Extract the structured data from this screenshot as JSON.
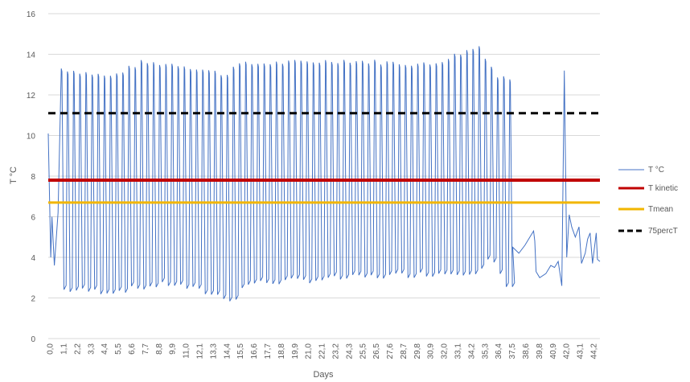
{
  "chart_data": {
    "type": "line",
    "title": "",
    "xlabel": "Days",
    "ylabel": "T °C",
    "xlim": [
      0.0,
      44.9
    ],
    "ylim": [
      0,
      16
    ],
    "yticks": [
      0,
      2,
      4,
      6,
      8,
      10,
      12,
      14,
      16
    ],
    "xtick_labels": [
      "0,0",
      "1,1",
      "2,2",
      "3,3",
      "4,4",
      "5,5",
      "6,6",
      "7,7",
      "8,8",
      "9,9",
      "11,0",
      "12,1",
      "13,3",
      "14,4",
      "15,5",
      "16,6",
      "17,7",
      "18,8",
      "19,9",
      "21,0",
      "22,1",
      "23,2",
      "24,3",
      "25,5",
      "26,5",
      "27,6",
      "28,7",
      "29,8",
      "30,9",
      "32,0",
      "33,1",
      "34,2",
      "35,3",
      "36,4",
      "37,5",
      "38,6",
      "39,8",
      "40,9",
      "42,0",
      "43,1",
      "44,2"
    ],
    "grid": true,
    "legend_position": "right",
    "series": [
      {
        "name": "T °C",
        "style": "line",
        "color": "#4472C4",
        "description": "daily temperature cycles",
        "start": {
          "day": 0.0,
          "value": 10.1
        },
        "cycle_period_days": 0.5,
        "noise_region": [
          [
            0.2,
            4.0
          ],
          [
            0.3,
            6.0
          ],
          [
            0.5,
            3.6
          ],
          [
            0.8,
            6.2
          ]
        ],
        "peak_profile": [
          [
            1.0,
            13.3
          ],
          [
            5.0,
            12.9
          ],
          [
            7.5,
            13.6
          ],
          [
            10.5,
            13.5
          ],
          [
            14.5,
            13.0
          ],
          [
            15.0,
            13.5
          ],
          [
            24.0,
            13.7
          ],
          [
            31.0,
            13.5
          ],
          [
            35.0,
            14.4
          ],
          [
            36.5,
            12.9
          ],
          [
            37.8,
            12.8
          ]
        ],
        "trough_profile": [
          [
            1.0,
            2.4
          ],
          [
            5.0,
            2.3
          ],
          [
            10.0,
            2.7
          ],
          [
            14.5,
            2.0
          ],
          [
            15.2,
            1.9
          ],
          [
            16.0,
            2.7
          ],
          [
            25.0,
            3.0
          ],
          [
            35.0,
            3.3
          ],
          [
            36.0,
            4.0
          ],
          [
            37.2,
            2.5
          ],
          [
            37.8,
            2.6
          ]
        ],
        "tail_points": [
          [
            37.8,
            4.5
          ],
          [
            38.3,
            4.2
          ],
          [
            38.8,
            4.6
          ],
          [
            39.2,
            5.0
          ],
          [
            39.5,
            5.3
          ],
          [
            39.6,
            4.8
          ],
          [
            39.7,
            3.3
          ],
          [
            40.0,
            3.0
          ],
          [
            40.5,
            3.2
          ],
          [
            40.9,
            3.6
          ],
          [
            41.2,
            3.5
          ],
          [
            41.5,
            3.8
          ],
          [
            41.8,
            2.6
          ],
          [
            42.0,
            13.2
          ],
          [
            42.2,
            4.0
          ],
          [
            42.4,
            6.1
          ],
          [
            42.6,
            5.5
          ],
          [
            42.9,
            5.0
          ],
          [
            43.2,
            5.5
          ],
          [
            43.4,
            3.7
          ],
          [
            43.7,
            4.2
          ],
          [
            43.9,
            4.9
          ],
          [
            44.1,
            5.2
          ],
          [
            44.3,
            3.7
          ],
          [
            44.6,
            5.2
          ],
          [
            44.7,
            3.9
          ],
          [
            44.9,
            3.8
          ]
        ]
      },
      {
        "name": "T kinetic",
        "style": "solid",
        "color": "#C00000",
        "value": 7.8
      },
      {
        "name": "Tmean",
        "style": "solid",
        "color": "#F2B600",
        "value": 6.7
      },
      {
        "name": "75percT",
        "style": "dashed",
        "color": "#000000",
        "value": 11.1
      }
    ]
  }
}
